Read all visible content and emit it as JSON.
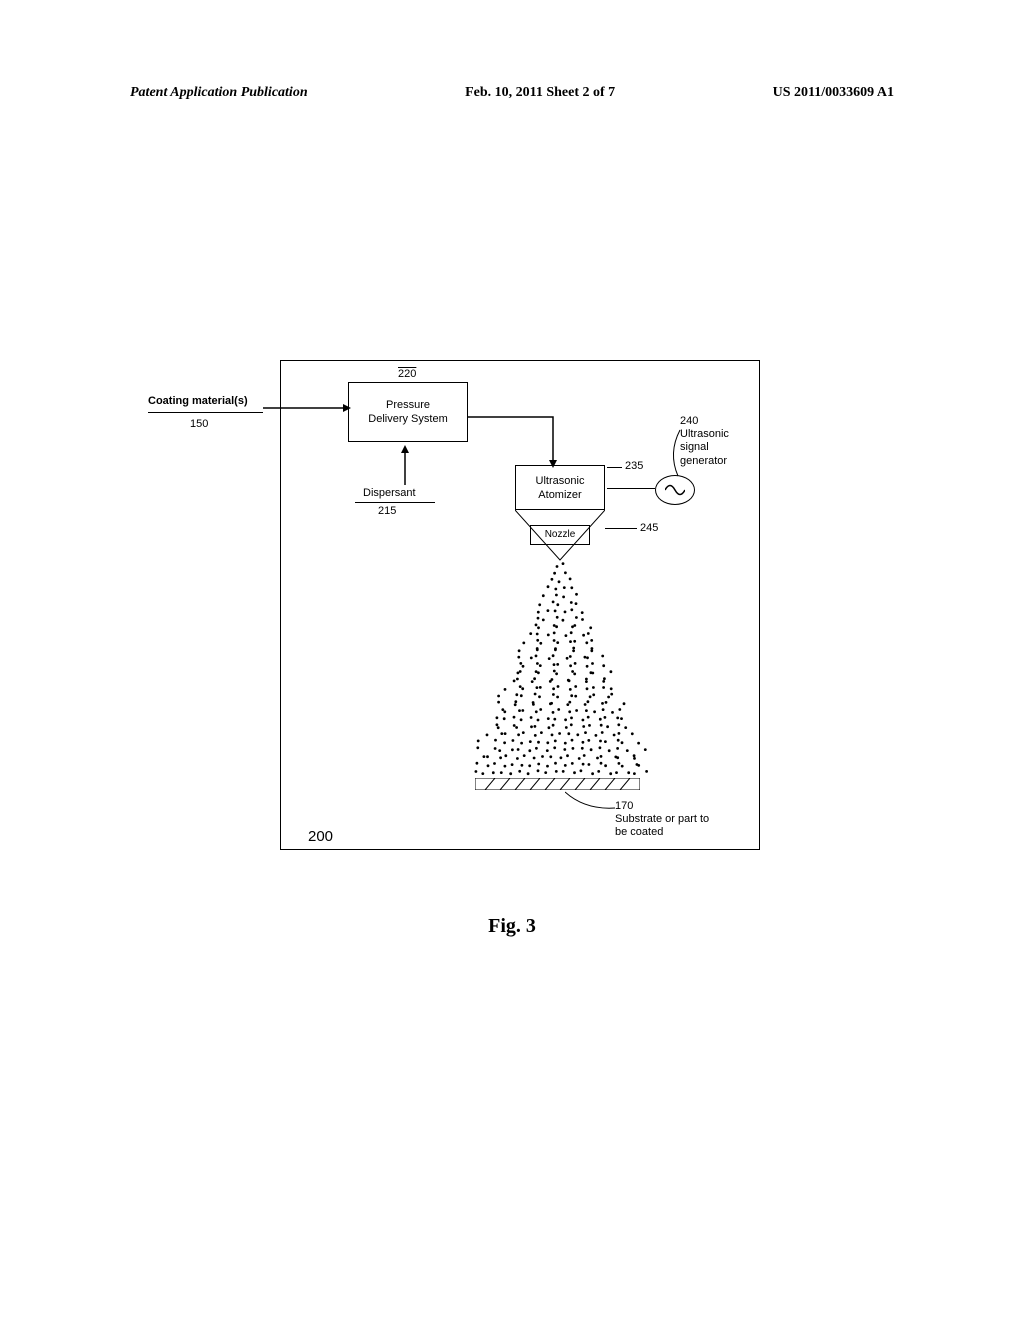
{
  "header": {
    "left": "Patent Application Publication",
    "center": "Feb. 10, 2011  Sheet 2 of 7",
    "right": "US 2011/0033609 A1"
  },
  "coating": {
    "label": "Coating material(s)",
    "num": "150"
  },
  "pressure_box": {
    "num": "220",
    "text": "Pressure\nDelivery System"
  },
  "dispersant": {
    "label": "Dispersant",
    "num": "215"
  },
  "atomizer": {
    "num": "235",
    "text": "Ultrasonic\nAtomizer"
  },
  "nozzle": {
    "num": "245",
    "text": "Nozzle"
  },
  "generator": {
    "num": "240",
    "text": "Ultrasonic\nsignal\ngenerator"
  },
  "substrate": {
    "num": "170",
    "text": "Substrate or part to\nbe coated"
  },
  "figure_num": "200",
  "caption": "Fig. 3",
  "colors": {
    "stroke": "#000000",
    "background": "#ffffff"
  }
}
